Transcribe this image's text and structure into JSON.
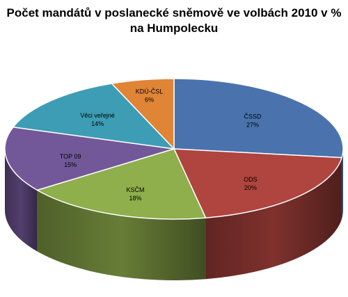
{
  "chart_data": {
    "type": "pie",
    "title_lines": [
      "Počet mandátů v poslanecké sněmově ve volbách 2010 v %",
      "na Humpolecku"
    ],
    "three_d": true,
    "legend": "none",
    "slices": [
      {
        "label": "ČSSD",
        "value_label": "27%",
        "value": 27,
        "color": "#4a73ae"
      },
      {
        "label": "ODS",
        "value_label": "20%",
        "value": 20,
        "color": "#b0443f"
      },
      {
        "label": "KSČM",
        "value_label": "18%",
        "value": 18,
        "color": "#8fae4c"
      },
      {
        "label": "TOP 09",
        "value_label": "15%",
        "value": 15,
        "color": "#735899"
      },
      {
        "label": "Věci veřejné",
        "value_label": "14%",
        "value": 14,
        "color": "#3d9db4"
      },
      {
        "label": "KDÚ-ČSL",
        "value_label": "6%",
        "value": 6,
        "color": "#e08436"
      }
    ]
  }
}
